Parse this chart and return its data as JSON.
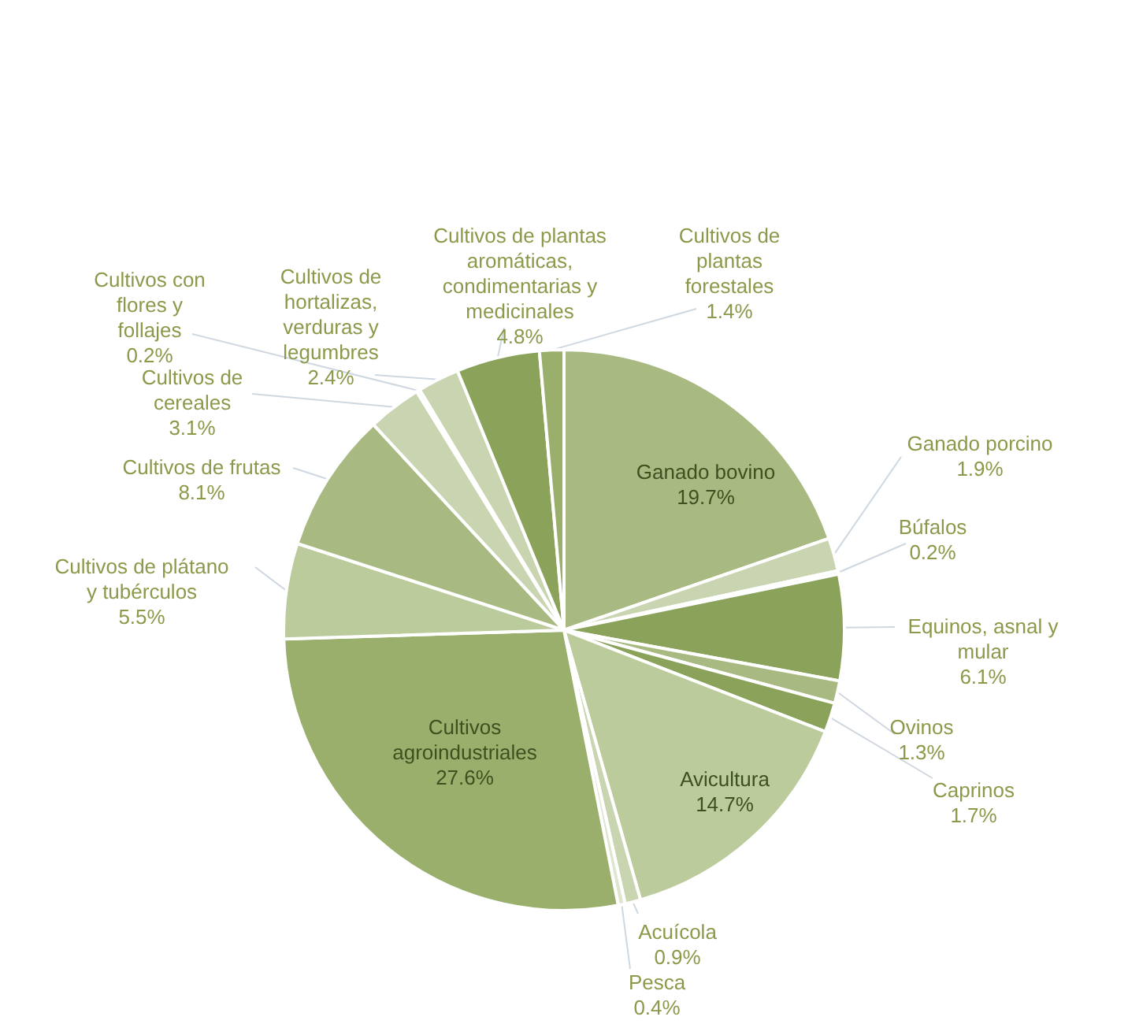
{
  "chart_data": {
    "type": "pie",
    "categories": [
      "Ganado bovino",
      "Ganado porcino",
      "Búfalos",
      "Equinos, asnal y mular",
      "Ovinos",
      "Caprinos",
      "Avicultura",
      "Acuícola",
      "Pesca",
      "Cultivos agroindustriales",
      "Cultivos de plátano y tubérculos",
      "Cultivos de frutas",
      "Cultivos de cereales",
      "Cultivos con flores y follajes",
      "Cultivos de hortalizas, verduras y legumbres",
      "Cultivos de plantas aromáticas, condimentarias y medicinales",
      "Cultivos de plantas forestales"
    ],
    "values": [
      19.7,
      1.9,
      0.2,
      6.1,
      1.3,
      1.7,
      14.7,
      0.9,
      0.4,
      27.6,
      5.5,
      8.1,
      3.1,
      0.2,
      2.4,
      4.8,
      1.4
    ],
    "value_labels": [
      "19.7%",
      "1.9%",
      "0.2%",
      "6.1%",
      "1.3%",
      "1.7%",
      "14.7%",
      "0.9%",
      "0.4%",
      "27.6%",
      "5.5%",
      "8.1%",
      "3.1%",
      "0.2%",
      "2.4%",
      "4.8%",
      "1.4%"
    ],
    "colors": [
      "#a9b982",
      "#c9d4b0",
      "#dfe6cf",
      "#8aa25a",
      "#a9b982",
      "#8aa25a",
      "#bccb9c",
      "#c9d4b0",
      "#dfe6cf",
      "#9aaf6c",
      "#bccb9c",
      "#a9b982",
      "#c9d4b0",
      "#dfe6cf",
      "#c9d4b0",
      "#8aa25a",
      "#9aaf6c"
    ]
  }
}
